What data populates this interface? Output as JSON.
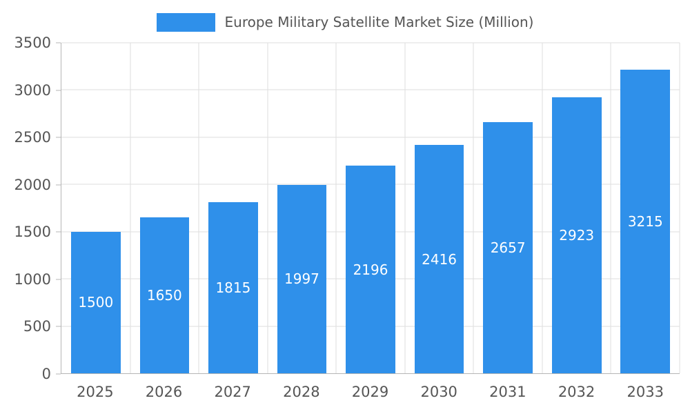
{
  "chart_data": {
    "type": "bar",
    "title": "Europe Military Satellite Market Size (Million)",
    "categories": [
      "2025",
      "2026",
      "2027",
      "2028",
      "2029",
      "2030",
      "2031",
      "2032",
      "2033"
    ],
    "values": [
      1500,
      1650,
      1815,
      1997,
      2196,
      2416,
      2657,
      2923,
      3215
    ],
    "xlabel": "",
    "ylabel": "",
    "ylim": [
      0,
      3500
    ],
    "ytick_step": 500,
    "yticks": [
      0,
      500,
      1000,
      1500,
      2000,
      2500,
      3000,
      3500
    ],
    "grid": true,
    "legend_position": "top-center",
    "value_label_position": "inside-center"
  },
  "legend": {
    "label": "Europe Military Satellite Market Size (Million)"
  },
  "colors": {
    "bar": "#2F90EA",
    "grid": "#dddddd",
    "axis": "#b5b5b5",
    "axis_text": "#555555",
    "value_text": "#ffffff",
    "background": "#ffffff"
  }
}
